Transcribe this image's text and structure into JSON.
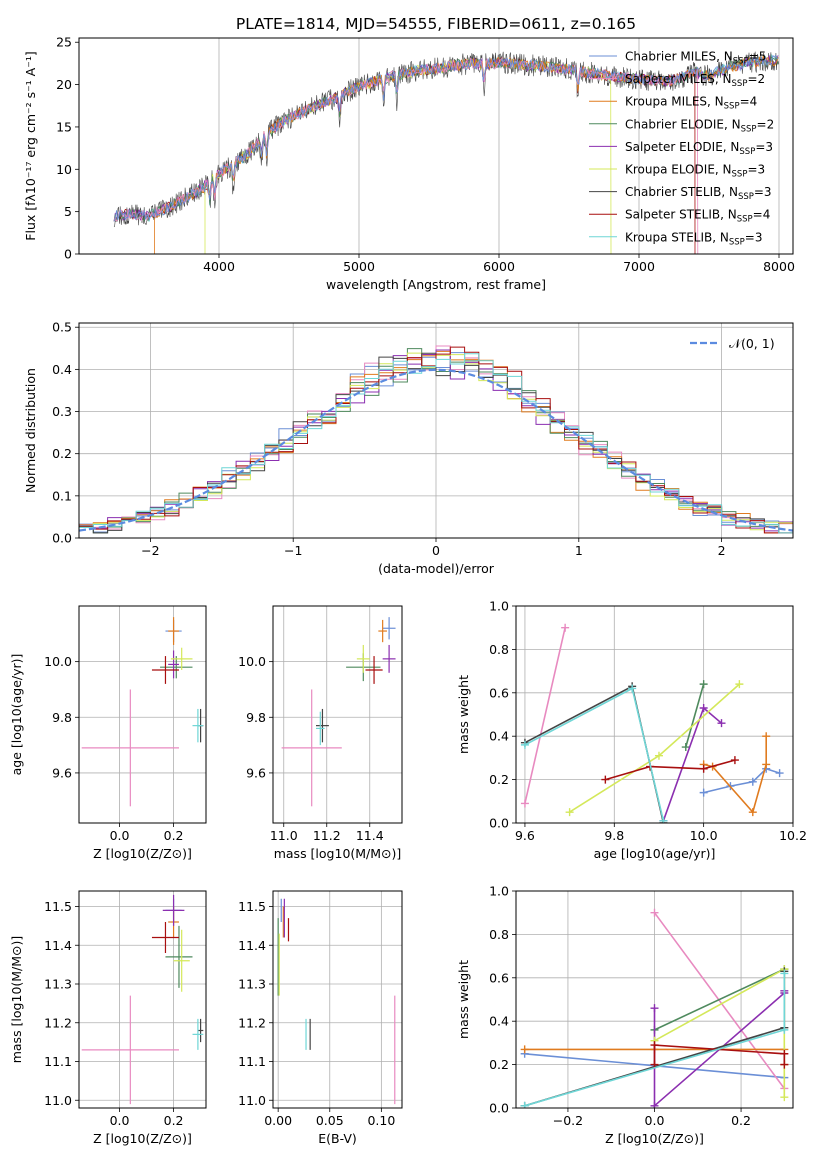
{
  "figure_title": "PLATE=1814, MJD=54555, FIBERID=0611, z=0.165",
  "legend_labels": [
    {
      "base": "Chabrier MILES, N",
      "sub": "SSP",
      "tail": "=5"
    },
    {
      "base": "Salpeter MILES, N",
      "sub": "SSP",
      "tail": "=2"
    },
    {
      "base": "Kroupa MILES, N",
      "sub": "SSP",
      "tail": "=4"
    },
    {
      "base": "Chabrier ELODIE, N",
      "sub": "SSP",
      "tail": "=2"
    },
    {
      "base": "Salpeter ELODIE, N",
      "sub": "SSP",
      "tail": "=3"
    },
    {
      "base": "Kroupa ELODIE, N",
      "sub": "SSP",
      "tail": "=3"
    },
    {
      "base": "Chabrier STELIB, N",
      "sub": "SSP",
      "tail": "=3"
    },
    {
      "base": "Salpeter STELIB, N",
      "sub": "SSP",
      "tail": "=4"
    },
    {
      "base": "Kroupa STELIB, N",
      "sub": "SSP",
      "tail": "=3"
    }
  ],
  "colors": {
    "chabrier_miles": "#6b8fd6",
    "salpeter_miles": "#e88ac0",
    "kroupa_miles": "#e07b1f",
    "chabrier_elodie": "#4f8a5e",
    "salpeter_elodie": "#8b2fb0",
    "kroupa_elodie": "#d4e85a",
    "chabrier_stelib": "#444444",
    "salpeter_stelib": "#a80f0f",
    "kroupa_stelib": "#6fd6d6",
    "normal": "#5b8be0",
    "grid": "#b0b0b0"
  },
  "chart_data": [
    {
      "id": "spectrum",
      "type": "line",
      "title": "PLATE=1814, MJD=54555, FIBERID=0611, z=0.165",
      "xlabel": "wavelength [Angstrom, rest frame]",
      "ylabel": "Flux [fλ10⁻¹⁷ erg cm⁻² s⁻¹ A⁻¹]",
      "xlim": [
        3000,
        8100
      ],
      "ylim": [
        0,
        25.5
      ],
      "xticks": [
        4000,
        5000,
        6000,
        7000,
        8000
      ],
      "yticks": [
        0,
        5,
        10,
        15,
        20,
        25
      ],
      "grid": "x-only",
      "legend": "upper-right",
      "envelope_x": [
        3250,
        3300,
        3400,
        3500,
        3600,
        3700,
        3800,
        3900,
        4000,
        4100,
        4200,
        4300,
        4400,
        4500,
        4600,
        4700,
        4800,
        4900,
        5000,
        5100,
        5200,
        5300,
        5400,
        5500,
        5600,
        5700,
        5800,
        5900,
        6000,
        6100,
        6200,
        6300,
        6400,
        6500,
        6600,
        6700,
        6800,
        6900,
        7000,
        7100,
        7200,
        7300,
        7400,
        7500,
        7600,
        7700,
        7800,
        7900,
        8000
      ],
      "envelope_y": [
        4.5,
        4.6,
        4.7,
        4.5,
        5.2,
        6.0,
        7.0,
        8.0,
        9.5,
        10.5,
        11.8,
        13.5,
        15.0,
        16.0,
        16.8,
        17.5,
        18.2,
        19.0,
        19.8,
        20.3,
        20.8,
        21.2,
        21.6,
        21.8,
        22.0,
        22.3,
        22.5,
        22.4,
        22.6,
        22.5,
        22.3,
        22.2,
        22.0,
        21.8,
        21.5,
        21.3,
        21.0,
        20.8,
        20.6,
        20.5,
        20.4,
        20.8,
        21.5,
        21.0,
        21.8,
        22.3,
        22.6,
        22.8,
        22.9
      ],
      "absorption_lines_x": [
        3934,
        3969,
        4102,
        4304,
        4341,
        4861,
        5175,
        5270,
        5892,
        6563
      ],
      "cutoffs": {
        "kroupa_miles_start": 3540,
        "salpeter_miles_end": 7420,
        "kroupa_elodie_start": 3900,
        "kroupa_elodie_end": 6800,
        "salpeter_stelib_end": 7400
      }
    },
    {
      "id": "residuals",
      "type": "histogram",
      "xlabel": "(data-model)/error",
      "ylabel": "Normed distribution",
      "xlim": [
        -2.5,
        2.5
      ],
      "ylim": [
        0,
        0.51
      ],
      "xticks": [
        -2,
        -1,
        0,
        1,
        2
      ],
      "yticks": [
        0,
        0.1,
        0.2,
        0.3,
        0.4,
        0.5
      ],
      "grid": "both",
      "legend": "upper-right",
      "legend_label": "𝒩(0, 1)",
      "bin_width": 0.1,
      "bin_start": -2.5
    },
    {
      "id": "age_vs_Z",
      "type": "errorbar",
      "xlabel": "Z [log10(Z/Z⊙)]",
      "ylabel": "age  [log10(age/yr)]",
      "xlim": [
        -0.15,
        0.32
      ],
      "ylim": [
        9.42,
        10.2
      ],
      "xticks": [
        0.0,
        0.2
      ],
      "yticks": [
        9.6,
        9.8,
        10.0
      ],
      "grid": "both",
      "points": [
        {
          "series": "chabrier_miles",
          "x": 0.2,
          "y": 10.11,
          "xerr": 0.03,
          "yerr": 0.04
        },
        {
          "series": "salpeter_miles",
          "x": 0.04,
          "y": 9.69,
          "xerr": 0.18,
          "yerr": 0.21
        },
        {
          "series": "kroupa_miles",
          "x": 0.2,
          "y": 10.11,
          "xerr": 0.02,
          "yerr": 0.05
        },
        {
          "series": "chabrier_elodie",
          "x": 0.21,
          "y": 9.98,
          "xerr": 0.06,
          "yerr": 0.04
        },
        {
          "series": "salpeter_elodie",
          "x": 0.2,
          "y": 9.99,
          "xerr": 0.02,
          "yerr": 0.05
        },
        {
          "series": "kroupa_elodie",
          "x": 0.23,
          "y": 10.01,
          "xerr": 0.04,
          "yerr": 0.04
        },
        {
          "series": "chabrier_stelib",
          "x": 0.3,
          "y": 9.77,
          "xerr": 0.01,
          "yerr": 0.06
        },
        {
          "series": "salpeter_stelib",
          "x": 0.17,
          "y": 9.97,
          "xerr": 0.05,
          "yerr": 0.05
        },
        {
          "series": "kroupa_stelib",
          "x": 0.29,
          "y": 9.77,
          "xerr": 0.02,
          "yerr": 0.06
        }
      ]
    },
    {
      "id": "age_vs_mass",
      "type": "errorbar",
      "xlabel": "mass [log10(M/M⊙)]",
      "ylabel": "",
      "xlim": [
        10.95,
        11.55
      ],
      "ylim": [
        9.42,
        10.2
      ],
      "xticks": [
        11.0,
        11.2,
        11.4
      ],
      "yticks": [
        9.6,
        9.8,
        10.0
      ],
      "grid": "both",
      "points": [
        {
          "series": "chabrier_miles",
          "x": 11.49,
          "y": 10.12,
          "xerr": 0.03,
          "yerr": 0.04
        },
        {
          "series": "salpeter_miles",
          "x": 11.13,
          "y": 9.69,
          "xerr": 0.14,
          "yerr": 0.21
        },
        {
          "series": "kroupa_miles",
          "x": 11.46,
          "y": 10.11,
          "xerr": 0.02,
          "yerr": 0.04
        },
        {
          "series": "chabrier_elodie",
          "x": 11.37,
          "y": 9.98,
          "xerr": 0.08,
          "yerr": 0.05
        },
        {
          "series": "salpeter_elodie",
          "x": 11.49,
          "y": 10.01,
          "xerr": 0.03,
          "yerr": 0.05
        },
        {
          "series": "kroupa_elodie",
          "x": 11.37,
          "y": 10.01,
          "xerr": 0.03,
          "yerr": 0.05
        },
        {
          "series": "chabrier_stelib",
          "x": 11.18,
          "y": 9.77,
          "xerr": 0.03,
          "yerr": 0.06
        },
        {
          "series": "salpeter_stelib",
          "x": 11.42,
          "y": 9.97,
          "xerr": 0.04,
          "yerr": 0.05
        },
        {
          "series": "kroupa_stelib",
          "x": 11.17,
          "y": 9.76,
          "xerr": 0.02,
          "yerr": 0.06
        }
      ]
    },
    {
      "id": "weight_vs_age",
      "type": "line",
      "xlabel": "age  [log10(age/yr)]",
      "ylabel": "mass weight",
      "xlim": [
        9.58,
        10.2
      ],
      "ylim": [
        0,
        1.0
      ],
      "xticks": [
        9.6,
        9.8,
        10.0,
        10.2
      ],
      "yticks": [
        0.0,
        0.2,
        0.4,
        0.6,
        0.8,
        1.0
      ],
      "grid": "both",
      "series": [
        {
          "series": "chabrier_miles",
          "x": [
            10.0,
            10.06,
            10.11,
            10.14,
            10.17
          ],
          "y": [
            0.14,
            0.17,
            0.19,
            0.25,
            0.23
          ]
        },
        {
          "series": "salpeter_miles",
          "x": [
            9.6,
            9.69
          ],
          "y": [
            0.09,
            0.9
          ]
        },
        {
          "series": "kroupa_miles",
          "x": [
            10.0,
            10.02,
            10.11,
            10.14,
            10.14
          ],
          "y": [
            0.27,
            0.26,
            0.05,
            0.27,
            0.4
          ]
        },
        {
          "series": "chabrier_elodie",
          "x": [
            9.96,
            10.0
          ],
          "y": [
            0.35,
            0.64
          ]
        },
        {
          "series": "salpeter_elodie",
          "x": [
            9.91,
            10.0,
            10.04
          ],
          "y": [
            0.01,
            0.53,
            0.46
          ]
        },
        {
          "series": "kroupa_elodie",
          "x": [
            9.7,
            9.9,
            10.08
          ],
          "y": [
            0.05,
            0.31,
            0.64
          ]
        },
        {
          "series": "chabrier_stelib",
          "x": [
            9.6,
            9.84,
            9.91
          ],
          "y": [
            0.37,
            0.63,
            0.0
          ]
        },
        {
          "series": "salpeter_stelib",
          "x": [
            9.78,
            9.88,
            10.0,
            10.07
          ],
          "y": [
            0.2,
            0.26,
            0.25,
            0.29
          ]
        },
        {
          "series": "kroupa_stelib",
          "x": [
            9.6,
            9.84,
            9.91
          ],
          "y": [
            0.36,
            0.62,
            0.01
          ]
        }
      ]
    },
    {
      "id": "mass_vs_Z",
      "type": "errorbar",
      "xlabel": "Z [log10(Z/Z⊙)]",
      "ylabel": "mass [log10(M/M⊙)]",
      "xlim": [
        -0.15,
        0.32
      ],
      "ylim": [
        10.98,
        11.54
      ],
      "xticks": [
        0.0,
        0.2
      ],
      "yticks": [
        11.0,
        11.1,
        11.2,
        11.3,
        11.4,
        11.5
      ],
      "grid": "both",
      "points": [
        {
          "series": "chabrier_miles",
          "x": 0.2,
          "y": 11.49,
          "xerr": 0.03,
          "yerr": 0.03
        },
        {
          "series": "salpeter_miles",
          "x": 0.04,
          "y": 11.13,
          "xerr": 0.18,
          "yerr": 0.14
        },
        {
          "series": "kroupa_miles",
          "x": 0.2,
          "y": 11.46,
          "xerr": 0.02,
          "yerr": 0.04
        },
        {
          "series": "chabrier_elodie",
          "x": 0.22,
          "y": 11.37,
          "xerr": 0.05,
          "yerr": 0.08
        },
        {
          "series": "salpeter_elodie",
          "x": 0.2,
          "y": 11.49,
          "xerr": 0.04,
          "yerr": 0.04
        },
        {
          "series": "kroupa_elodie",
          "x": 0.23,
          "y": 11.36,
          "xerr": 0.03,
          "yerr": 0.08
        },
        {
          "series": "chabrier_stelib",
          "x": 0.3,
          "y": 11.18,
          "xerr": 0.01,
          "yerr": 0.03
        },
        {
          "series": "salpeter_stelib",
          "x": 0.17,
          "y": 11.42,
          "xerr": 0.05,
          "yerr": 0.04
        },
        {
          "series": "kroupa_stelib",
          "x": 0.29,
          "y": 11.17,
          "xerr": 0.02,
          "yerr": 0.04
        }
      ]
    },
    {
      "id": "mass_vs_ebv",
      "type": "errorbar",
      "xlabel": "E(B-V)",
      "ylabel": "",
      "xlim": [
        -0.005,
        0.12
      ],
      "ylim": [
        10.98,
        11.54
      ],
      "xticks": [
        0.0,
        0.05,
        0.1
      ],
      "yticks": [
        11.0,
        11.1,
        11.2,
        11.3,
        11.4,
        11.5
      ],
      "grid": "both",
      "points": [
        {
          "series": "chabrier_miles",
          "x": 0.003,
          "y": 11.49,
          "xerr": 0,
          "yerr": 0.03
        },
        {
          "series": "salpeter_miles",
          "x": 0.113,
          "y": 11.13,
          "xerr": 0,
          "yerr": 0.14
        },
        {
          "series": "kroupa_miles",
          "x": 0.005,
          "y": 11.46,
          "xerr": 0,
          "yerr": 0.04
        },
        {
          "series": "chabrier_elodie",
          "x": 0.0,
          "y": 11.37,
          "xerr": 0,
          "yerr": 0.1
        },
        {
          "series": "salpeter_elodie",
          "x": 0.006,
          "y": 11.47,
          "xerr": 0,
          "yerr": 0.05
        },
        {
          "series": "kroupa_elodie",
          "x": 0.001,
          "y": 11.35,
          "xerr": 0,
          "yerr": 0.08
        },
        {
          "series": "chabrier_stelib",
          "x": 0.031,
          "y": 11.17,
          "xerr": 0,
          "yerr": 0.04
        },
        {
          "series": "salpeter_stelib",
          "x": 0.01,
          "y": 11.44,
          "xerr": 0,
          "yerr": 0.03
        },
        {
          "series": "kroupa_stelib",
          "x": 0.027,
          "y": 11.17,
          "xerr": 0,
          "yerr": 0.04
        }
      ]
    },
    {
      "id": "weight_vs_Z",
      "type": "line",
      "xlabel": "Z [log10(Z/Z⊙)]",
      "ylabel": "mass weight",
      "xlim": [
        -0.32,
        0.32
      ],
      "ylim": [
        0,
        1.0
      ],
      "xticks": [
        -0.2,
        0.0,
        0.2
      ],
      "yticks": [
        0.0,
        0.2,
        0.4,
        0.6,
        0.8,
        1.0
      ],
      "grid": "both",
      "series": [
        {
          "series": "chabrier_miles",
          "x": [
            -0.3,
            0.3
          ],
          "y": [
            0.25,
            0.14
          ]
        },
        {
          "series": "salpeter_miles",
          "x": [
            0.0,
            0.3
          ],
          "y": [
            0.9,
            0.09
          ]
        },
        {
          "series": "kroupa_miles",
          "x": [
            -0.3,
            0.0,
            0.3,
            0.3
          ],
          "y": [
            0.27,
            0.27,
            0.27,
            0.2
          ]
        },
        {
          "series": "chabrier_elodie",
          "x": [
            0.0,
            0.3
          ],
          "y": [
            0.36,
            0.64
          ]
        },
        {
          "series": "salpeter_elodie",
          "x": [
            0.0,
            0.0,
            0.3,
            0.3
          ],
          "y": [
            0.46,
            0.01,
            0.53,
            0.54
          ]
        },
        {
          "series": "kroupa_elodie",
          "x": [
            0.0,
            0.3,
            0.3
          ],
          "y": [
            0.31,
            0.64,
            0.05
          ]
        },
        {
          "series": "chabrier_stelib",
          "x": [
            -0.3,
            0.3,
            0.3
          ],
          "y": [
            0.01,
            0.37,
            0.63
          ]
        },
        {
          "series": "salpeter_stelib",
          "x": [
            0.0,
            0.0,
            0.3,
            0.3
          ],
          "y": [
            0.2,
            0.29,
            0.25,
            0.2
          ]
        },
        {
          "series": "kroupa_stelib",
          "x": [
            -0.3,
            0.3,
            0.3
          ],
          "y": [
            0.01,
            0.36,
            0.62
          ]
        }
      ]
    }
  ]
}
